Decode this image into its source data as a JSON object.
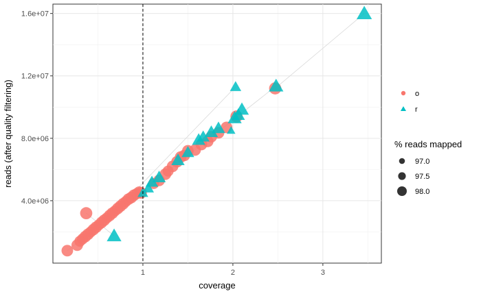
{
  "chart_data": {
    "type": "scatter",
    "title": "",
    "xlabel": "coverage",
    "ylabel": "reads (after quality filtering)",
    "xlim": [
      0.0,
      3.65
    ],
    "ylim": [
      0,
      16600000
    ],
    "x_ticks": [
      {
        "value": 1,
        "label": "1"
      },
      {
        "value": 2,
        "label": "2"
      },
      {
        "value": 3,
        "label": "3"
      }
    ],
    "y_ticks": [
      {
        "value": 4000000,
        "label": "4.0e+06"
      },
      {
        "value": 8000000,
        "label": "8.0e+06"
      },
      {
        "value": 12000000,
        "label": "1.2e+07"
      },
      {
        "value": 16000000,
        "label": "1.6e+07"
      }
    ],
    "vline": {
      "x": 1,
      "style": "dashed"
    },
    "grid": true,
    "legend_placement": "right",
    "legends": {
      "color": {
        "title": "",
        "entries": [
          {
            "label": "o",
            "shape": "circle",
            "color": "#F8766D"
          },
          {
            "label": "r",
            "shape": "triangle",
            "color": "#00BFC4"
          }
        ]
      },
      "size": {
        "title": "% reads mapped",
        "entries": [
          {
            "label": "97.0",
            "value": 97.0
          },
          {
            "label": "97.5",
            "value": 97.5
          },
          {
            "label": "98.0",
            "value": 98.0
          }
        ]
      }
    },
    "series": [
      {
        "name": "o",
        "shape": "circle",
        "color": "#F8766D",
        "points": [
          [
            0.16,
            800000
          ],
          [
            0.27,
            1150000
          ],
          [
            0.3,
            1400000
          ],
          [
            0.33,
            1550000
          ],
          [
            0.36,
            1700000
          ],
          [
            0.39,
            1850000
          ],
          [
            0.42,
            2000000
          ],
          [
            0.45,
            2150000
          ],
          [
            0.48,
            2300000
          ],
          [
            0.51,
            2450000
          ],
          [
            0.54,
            2600000
          ],
          [
            0.57,
            2750000
          ],
          [
            0.6,
            2900000
          ],
          [
            0.63,
            3050000
          ],
          [
            0.66,
            3200000
          ],
          [
            0.69,
            3350000
          ],
          [
            0.72,
            3500000
          ],
          [
            0.75,
            3650000
          ],
          [
            0.78,
            3800000
          ],
          [
            0.81,
            3950000
          ],
          [
            0.84,
            4100000
          ],
          [
            0.87,
            4200000
          ],
          [
            0.9,
            4350000
          ],
          [
            0.93,
            4450000
          ],
          [
            0.96,
            4550000
          ],
          [
            0.98,
            4500000
          ],
          [
            0.37,
            3200000
          ],
          [
            1.12,
            5100000
          ],
          [
            1.18,
            5300000
          ],
          [
            1.25,
            5700000
          ],
          [
            1.28,
            5900000
          ],
          [
            1.33,
            6200000
          ],
          [
            1.38,
            6500000
          ],
          [
            1.42,
            6800000
          ],
          [
            1.46,
            6900000
          ],
          [
            1.5,
            7200000
          ],
          [
            1.58,
            7250000
          ],
          [
            1.65,
            7600000
          ],
          [
            1.72,
            7800000
          ],
          [
            1.76,
            8100000
          ],
          [
            1.84,
            8350000
          ],
          [
            1.93,
            8700000
          ],
          [
            2.04,
            9400000
          ],
          [
            2.47,
            11200000
          ]
        ],
        "sizes": [
          97.6,
          97.6,
          97.5,
          97.5,
          97.6,
          97.6,
          97.5,
          97.6,
          97.6,
          97.5,
          97.6,
          97.6,
          97.5,
          97.6,
          97.6,
          97.5,
          97.6,
          97.6,
          97.6,
          97.5,
          97.6,
          97.6,
          97.6,
          97.5,
          97.6,
          97.6,
          97.7,
          97.5,
          97.6,
          97.6,
          97.5,
          97.6,
          97.6,
          97.6,
          97.6,
          97.6,
          97.6,
          97.6,
          97.6,
          97.6,
          97.6,
          97.6,
          97.7,
          97.7
        ]
      },
      {
        "name": "r",
        "shape": "triangle",
        "color": "#00BFC4",
        "points": [
          [
            0.68,
            1750000
          ],
          [
            1.0,
            4500000
          ],
          [
            1.06,
            4800000
          ],
          [
            1.1,
            5200000
          ],
          [
            1.18,
            5500000
          ],
          [
            1.39,
            6600000
          ],
          [
            1.5,
            7100000
          ],
          [
            1.62,
            7900000
          ],
          [
            1.67,
            8100000
          ],
          [
            1.76,
            8400000
          ],
          [
            1.84,
            8650000
          ],
          [
            1.98,
            8500000
          ],
          [
            2.02,
            9300000
          ],
          [
            2.06,
            9500000
          ],
          [
            2.1,
            9850000
          ],
          [
            2.03,
            11300000
          ],
          [
            2.48,
            11350000
          ],
          [
            3.46,
            16000000
          ]
        ],
        "sizes": [
          97.8,
          97.2,
          97.3,
          97.5,
          97.6,
          97.6,
          97.5,
          97.6,
          97.5,
          97.6,
          97.6,
          96.9,
          97.7,
          97.6,
          97.7,
          97.3,
          97.8,
          97.9
        ]
      }
    ]
  }
}
